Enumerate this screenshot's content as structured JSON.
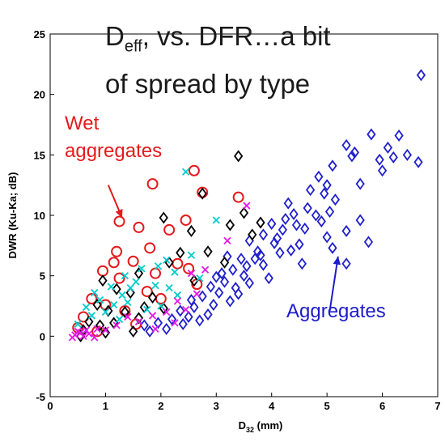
{
  "chart_data": {
    "type": "scatter",
    "title_main": "D",
    "title_sub": "eff",
    "title_line1_rest": ", vs. DFR…a bit",
    "title_line2": "of spread by type",
    "xlabel_main": "D",
    "xlabel_sub": "32",
    "xlabel_unit": " (mm)",
    "ylabel": "DWR (Ku-Ka; dB)",
    "xlim": [
      0,
      7
    ],
    "ylim": [
      -5,
      25
    ],
    "xticks": [
      "0",
      "1",
      "2",
      "3",
      "4",
      "5",
      "6",
      "7"
    ],
    "yticks": [
      "-5",
      "0",
      "5",
      "10",
      "15",
      "20",
      "25"
    ],
    "annotations": [
      {
        "text_line1": "Wet",
        "text_line2": "aggregates",
        "color": "#e41a1c",
        "arrow_from": [
          1.05,
          12.5
        ],
        "arrow_to": [
          1.3,
          9.8
        ]
      },
      {
        "text": "Aggregates",
        "color": "#1c1cc8",
        "arrow_from": [
          5.05,
          2.1
        ],
        "arrow_to": [
          5.2,
          6.6
        ]
      }
    ],
    "series": [
      {
        "color": "#1f1fcc",
        "marker": "diamond",
        "points": [
          [
            6.7,
            21.6
          ],
          [
            5.8,
            16.7
          ],
          [
            6.3,
            16.6
          ],
          [
            5.35,
            15.8
          ],
          [
            6.1,
            15.6
          ],
          [
            6.45,
            15.0
          ],
          [
            6.65,
            14.4
          ],
          [
            5.5,
            15.2
          ],
          [
            6.2,
            14.8
          ],
          [
            5.1,
            14.1
          ],
          [
            5.45,
            14.9
          ],
          [
            5.95,
            14.6
          ],
          [
            6.0,
            13.7
          ],
          [
            4.85,
            13.2
          ],
          [
            5.0,
            12.5
          ],
          [
            5.6,
            12.6
          ],
          [
            4.7,
            12.1
          ],
          [
            4.95,
            11.8
          ],
          [
            4.3,
            11.0
          ],
          [
            4.65,
            10.6
          ],
          [
            5.15,
            11.3
          ],
          [
            4.4,
            10.1
          ],
          [
            4.8,
            10.0
          ],
          [
            5.05,
            10.3
          ],
          [
            4.25,
            9.7
          ],
          [
            4.45,
            9.2
          ],
          [
            4.9,
            9.5
          ],
          [
            4.0,
            9.3
          ],
          [
            4.2,
            8.8
          ],
          [
            4.6,
            8.9
          ],
          [
            5.0,
            8.2
          ],
          [
            5.35,
            8.7
          ],
          [
            5.6,
            9.6
          ],
          [
            5.75,
            7.8
          ],
          [
            5.1,
            7.3
          ],
          [
            5.35,
            6.0
          ],
          [
            4.5,
            7.6
          ],
          [
            3.85,
            8.4
          ],
          [
            4.05,
            7.7
          ],
          [
            3.75,
            7.0
          ],
          [
            3.6,
            7.9
          ],
          [
            3.45,
            6.4
          ],
          [
            4.15,
            6.9
          ],
          [
            4.55,
            6.0
          ],
          [
            3.85,
            5.9
          ],
          [
            3.55,
            5.8
          ],
          [
            3.3,
            5.5
          ],
          [
            3.15,
            4.5
          ],
          [
            3.35,
            4.0
          ],
          [
            3.05,
            3.6
          ],
          [
            3.25,
            2.9
          ],
          [
            2.95,
            2.6
          ],
          [
            2.75,
            3.3
          ],
          [
            2.6,
            2.4
          ],
          [
            2.85,
            1.8
          ],
          [
            2.5,
            1.6
          ],
          [
            2.35,
            2.1
          ],
          [
            2.4,
            1.0
          ],
          [
            2.2,
            1.4
          ],
          [
            2.1,
            0.6
          ],
          [
            1.95,
            1.1
          ],
          [
            1.8,
            0.4
          ],
          [
            1.7,
            0.9
          ],
          [
            2.9,
            4.1
          ],
          [
            3.1,
            5.2
          ],
          [
            3.7,
            6.4
          ],
          [
            3.95,
            4.8
          ],
          [
            3.6,
            4.4
          ],
          [
            3.4,
            3.5
          ],
          [
            2.7,
            1.3
          ],
          [
            3.0,
            4.9
          ],
          [
            3.2,
            6.6
          ],
          [
            2.55,
            3.0
          ],
          [
            3.5,
            5.0
          ],
          [
            4.1,
            8.1
          ],
          [
            4.35,
            7.1
          ],
          [
            3.8,
            6.7
          ]
        ]
      },
      {
        "color": "#e41a1c",
        "marker": "circle",
        "points": [
          [
            2.6,
            13.7
          ],
          [
            1.85,
            12.6
          ],
          [
            2.75,
            11.9
          ],
          [
            1.25,
            9.5
          ],
          [
            1.6,
            9.0
          ],
          [
            2.45,
            9.6
          ],
          [
            2.15,
            8.8
          ],
          [
            1.2,
            7.0
          ],
          [
            1.8,
            7.3
          ],
          [
            1.15,
            6.1
          ],
          [
            1.5,
            6.2
          ],
          [
            2.3,
            6.0
          ],
          [
            0.95,
            5.4
          ],
          [
            1.25,
            4.8
          ],
          [
            2.5,
            5.6
          ],
          [
            1.75,
            3.7
          ],
          [
            2.65,
            4.3
          ],
          [
            0.75,
            3.1
          ],
          [
            1.0,
            2.6
          ],
          [
            0.6,
            1.6
          ],
          [
            1.35,
            2.1
          ],
          [
            0.5,
            0.7
          ],
          [
            0.85,
            0.4
          ],
          [
            1.55,
            1.0
          ],
          [
            2.0,
            3.1
          ],
          [
            1.9,
            5.2
          ],
          [
            3.4,
            11.5
          ]
        ]
      },
      {
        "color": "#000000",
        "marker": "diamond",
        "points": [
          [
            3.4,
            14.9
          ],
          [
            2.75,
            11.8
          ],
          [
            3.5,
            10.2
          ],
          [
            3.8,
            9.4
          ],
          [
            3.25,
            9.2
          ],
          [
            2.05,
            9.8
          ],
          [
            2.55,
            8.7
          ],
          [
            2.85,
            7.0
          ],
          [
            2.35,
            6.9
          ],
          [
            2.15,
            6.1
          ],
          [
            1.6,
            5.2
          ],
          [
            0.95,
            4.6
          ],
          [
            1.2,
            3.9
          ],
          [
            1.45,
            3.6
          ],
          [
            1.85,
            3.2
          ],
          [
            0.85,
            2.6
          ],
          [
            1.05,
            2.1
          ],
          [
            1.35,
            2.0
          ],
          [
            1.7,
            2.4
          ],
          [
            2.05,
            2.3
          ],
          [
            0.7,
            1.2
          ],
          [
            0.9,
            0.9
          ],
          [
            1.15,
            1.1
          ],
          [
            0.6,
            0.5
          ],
          [
            1.5,
            0.4
          ],
          [
            2.6,
            4.6
          ],
          [
            3.15,
            6.1
          ],
          [
            1.0,
            0.3
          ],
          [
            0.55,
            0.0
          ],
          [
            1.6,
            1.5
          ],
          [
            3.65,
            8.4
          ]
        ]
      },
      {
        "color": "#00cccc",
        "marker": "x",
        "points": [
          [
            2.45,
            13.6
          ],
          [
            3.0,
            9.6
          ],
          [
            2.1,
            6.3
          ],
          [
            2.55,
            6.7
          ],
          [
            1.65,
            5.6
          ],
          [
            1.95,
            5.8
          ],
          [
            1.35,
            5.0
          ],
          [
            2.25,
            5.3
          ],
          [
            0.8,
            3.6
          ],
          [
            1.1,
            4.1
          ],
          [
            1.3,
            3.4
          ],
          [
            1.55,
            4.5
          ],
          [
            1.9,
            4.2
          ],
          [
            2.15,
            4.0
          ],
          [
            0.65,
            2.4
          ],
          [
            0.9,
            3.0
          ],
          [
            1.0,
            2.0
          ],
          [
            1.4,
            2.8
          ],
          [
            1.75,
            2.2
          ],
          [
            2.0,
            2.5
          ],
          [
            0.5,
            1.0
          ],
          [
            0.75,
            1.7
          ],
          [
            1.25,
            1.4
          ],
          [
            1.6,
            1.2
          ],
          [
            2.3,
            3.4
          ],
          [
            2.7,
            4.8
          ],
          [
            1.15,
            2.6
          ],
          [
            1.45,
            4.0
          ]
        ]
      },
      {
        "color": "#e619e6",
        "marker": "x",
        "points": [
          [
            3.55,
            10.8
          ],
          [
            3.2,
            7.9
          ],
          [
            2.8,
            5.5
          ],
          [
            2.55,
            5.2
          ],
          [
            2.3,
            2.9
          ],
          [
            2.1,
            2.0
          ],
          [
            1.85,
            1.7
          ],
          [
            1.6,
            1.2
          ],
          [
            1.4,
            1.6
          ],
          [
            1.2,
            0.9
          ],
          [
            1.0,
            0.5
          ],
          [
            0.85,
            0.6
          ],
          [
            0.7,
            0.2
          ],
          [
            0.55,
            0.3
          ],
          [
            0.45,
            0.1
          ],
          [
            0.4,
            -0.1
          ],
          [
            0.6,
            0.0
          ],
          [
            0.8,
            -0.1
          ],
          [
            1.9,
            0.6
          ],
          [
            2.25,
            1.1
          ],
          [
            2.45,
            2.2
          ],
          [
            2.65,
            3.5
          ],
          [
            0.5,
            0.4
          ],
          [
            0.65,
            0.5
          ]
        ]
      }
    ]
  }
}
